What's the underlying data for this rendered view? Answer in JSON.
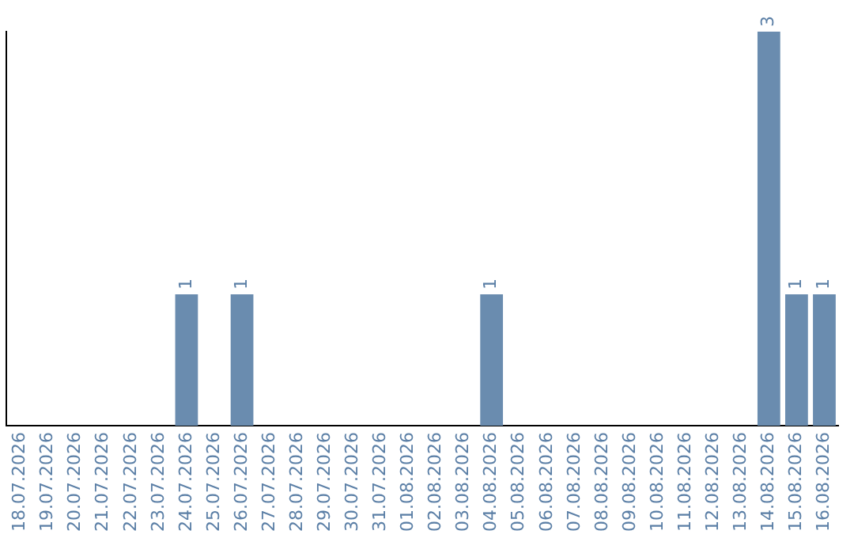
{
  "chart_data": {
    "type": "bar",
    "categories": [
      "18.07.2026",
      "19.07.2026",
      "20.07.2026",
      "21.07.2026",
      "22.07.2026",
      "23.07.2026",
      "24.07.2026",
      "25.07.2026",
      "26.07.2026",
      "27.07.2026",
      "28.07.2026",
      "29.07.2026",
      "30.07.2026",
      "31.07.2026",
      "01.08.2026",
      "02.08.2026",
      "03.08.2026",
      "04.08.2026",
      "05.08.2026",
      "06.08.2026",
      "07.08.2026",
      "08.08.2026",
      "09.08.2026",
      "10.08.2026",
      "11.08.2026",
      "12.08.2026",
      "13.08.2026",
      "14.08.2026",
      "15.08.2026",
      "16.08.2026"
    ],
    "values": [
      0,
      0,
      0,
      0,
      0,
      0,
      1,
      0,
      1,
      0,
      0,
      0,
      0,
      0,
      0,
      0,
      0,
      1,
      0,
      0,
      0,
      0,
      0,
      0,
      0,
      0,
      0,
      3,
      1,
      1
    ],
    "value_labels": [
      null,
      null,
      null,
      null,
      null,
      null,
      "1",
      null,
      "1",
      null,
      null,
      null,
      null,
      null,
      null,
      null,
      null,
      "1",
      null,
      null,
      null,
      null,
      null,
      null,
      null,
      null,
      null,
      "3",
      "1",
      "1"
    ],
    "color": "#6a8caf",
    "grid": false,
    "legend": false
  }
}
